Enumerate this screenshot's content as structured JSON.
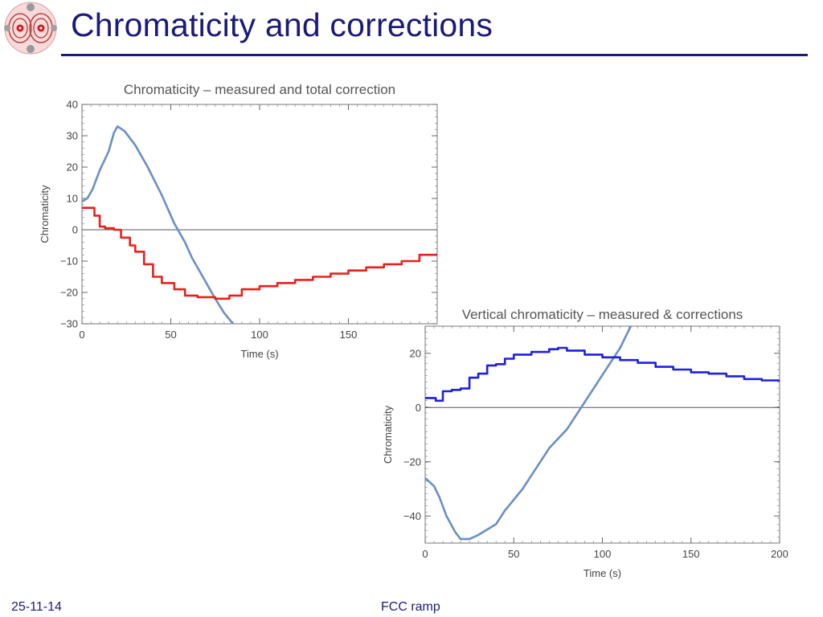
{
  "slide": {
    "title": "Chromaticity and corrections",
    "footer_date": "25-11-14",
    "footer_center": "FCC ramp"
  },
  "colors": {
    "title": "#1a1a7a",
    "measured": "#6a8fc7",
    "correction_total": "#e8201c",
    "correction_vertical": "#1f1fe0",
    "zero_line": "#555555"
  },
  "chart_data": [
    {
      "type": "line",
      "title": "Chromaticity – measured and total correction",
      "xlabel": "Time (s)",
      "ylabel": "Chromaticity",
      "xlim": [
        0,
        200
      ],
      "ylim": [
        -30,
        40
      ],
      "xticks": [
        0,
        50,
        100,
        150
      ],
      "yticks": [
        40,
        30,
        20,
        10,
        0,
        -10,
        -20,
        -30
      ],
      "ytick_labels": [
        "40",
        "30",
        "20",
        "10",
        "0",
        "−10",
        "−20",
        "−30"
      ],
      "series": [
        {
          "name": "measured",
          "color": "#6a8fc7",
          "x": [
            0,
            3,
            6,
            10,
            15,
            18,
            20,
            24,
            30,
            37,
            45,
            52,
            58,
            62,
            66,
            70,
            75,
            80,
            85
          ],
          "y": [
            9,
            10,
            13,
            19,
            25,
            31,
            33,
            31.5,
            27,
            20,
            11,
            2,
            -4,
            -9,
            -13,
            -17,
            -22,
            -26.5,
            -30
          ]
        },
        {
          "name": "total correction",
          "color": "#e8201c",
          "step": true,
          "x": [
            0,
            7,
            10,
            13,
            18,
            22,
            27,
            30,
            35,
            40,
            45,
            52,
            58,
            65,
            75,
            83,
            90,
            100,
            110,
            120,
            130,
            140,
            150,
            160,
            170,
            180,
            190,
            200
          ],
          "y": [
            7,
            4.5,
            1,
            0.5,
            0,
            -2.5,
            -5,
            -7,
            -11,
            -15,
            -17,
            -19,
            -21,
            -21.5,
            -22,
            -21,
            -19,
            -18,
            -17,
            -16,
            -15,
            -14,
            -13,
            -12,
            -11,
            -10,
            -8,
            -7.5
          ]
        }
      ]
    },
    {
      "type": "line",
      "title": "Vertical chromaticity – measured & corrections",
      "xlabel": "Time (s)",
      "ylabel": "Chromaticity",
      "xlim": [
        0,
        200
      ],
      "ylim": [
        -50,
        30
      ],
      "xticks": [
        0,
        50,
        100,
        150,
        200
      ],
      "yticks": [
        20,
        0,
        -20,
        -40
      ],
      "ytick_labels": [
        "20",
        "0",
        "−20",
        "−40"
      ],
      "series": [
        {
          "name": "measured",
          "color": "#6a8fc7",
          "x": [
            0,
            5,
            8,
            12,
            17,
            20,
            25,
            30,
            35,
            40,
            45,
            50,
            55,
            60,
            65,
            70,
            80,
            90,
            100,
            110,
            116
          ],
          "y": [
            -26,
            -29,
            -33,
            -40,
            -46,
            -48.5,
            -48.5,
            -47,
            -45,
            -43,
            -38,
            -34,
            -30,
            -25,
            -20,
            -15,
            -8,
            2,
            12,
            22,
            30
          ]
        },
        {
          "name": "corrections",
          "color": "#1f1fe0",
          "step": true,
          "x": [
            0,
            6,
            10,
            15,
            20,
            25,
            30,
            35,
            40,
            45,
            50,
            60,
            70,
            75,
            80,
            90,
            100,
            110,
            120,
            130,
            140,
            150,
            160,
            170,
            180,
            190,
            200
          ],
          "y": [
            3.5,
            2.5,
            6,
            6.5,
            7,
            11,
            12.5,
            15.5,
            16,
            18,
            19.5,
            20.5,
            21.5,
            22,
            21,
            19.5,
            18.5,
            17.5,
            16.5,
            15,
            14,
            13,
            12.5,
            11.5,
            10.5,
            10,
            9.5
          ]
        }
      ]
    }
  ]
}
